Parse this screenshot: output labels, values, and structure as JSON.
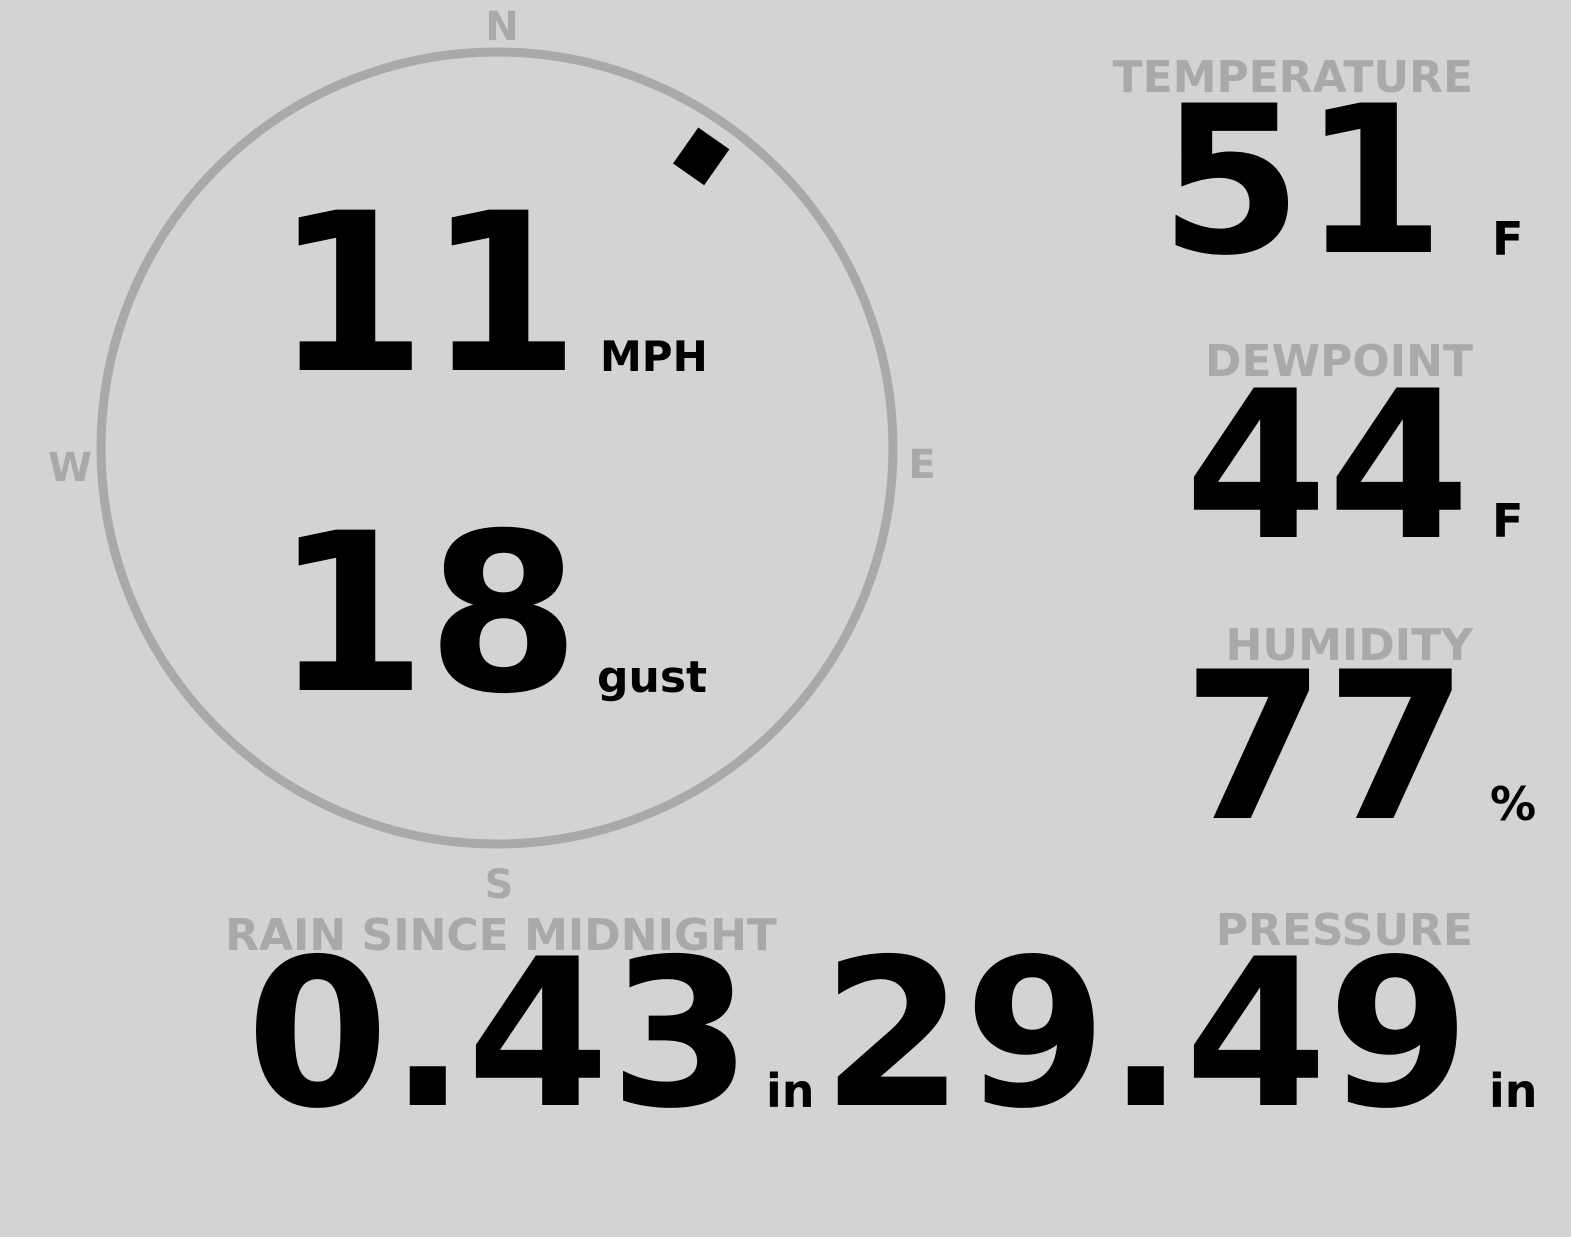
{
  "colors": {
    "background": "#d3d3d3",
    "label": "#a9a9a9",
    "value": "#000000",
    "compass_ring": "#a9a9a9"
  },
  "wind": {
    "compass": {
      "north": "N",
      "east": "E",
      "south": "S",
      "west": "W"
    },
    "direction_degrees": 35,
    "speed": "11",
    "speed_unit": "MPH",
    "gust": "18",
    "gust_unit": "gust"
  },
  "temperature": {
    "label": "TEMPERATURE",
    "value": "51",
    "unit": "F"
  },
  "dewpoint": {
    "label": "DEWPOINT",
    "value": "44",
    "unit": "F"
  },
  "humidity": {
    "label": "HUMIDITY",
    "value": "77",
    "unit": "%"
  },
  "rain": {
    "label": "RAIN SINCE MIDNIGHT",
    "value": "0.43",
    "unit": "in"
  },
  "pressure": {
    "label": "PRESSURE",
    "value": "29.49",
    "unit": "in"
  }
}
